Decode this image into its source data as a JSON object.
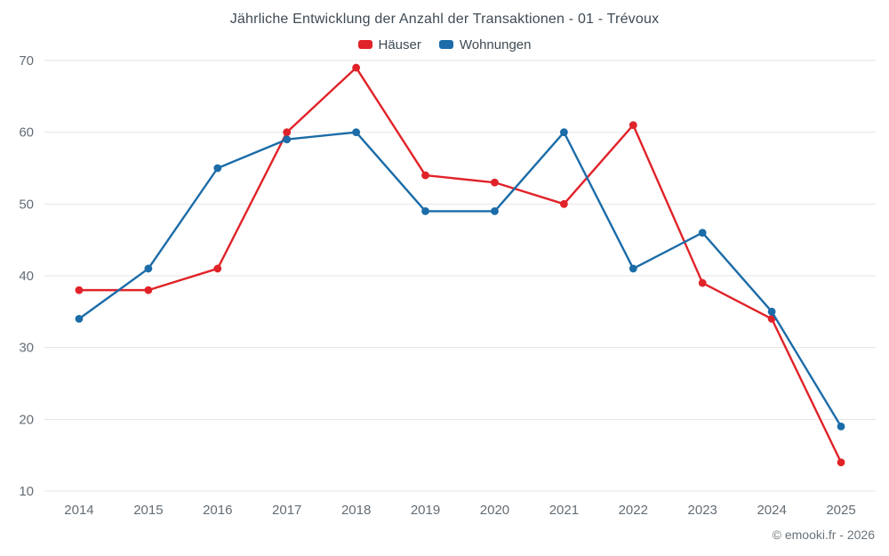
{
  "title": "Jährliche Entwicklung der Anzahl der Transaktionen - 01 - Trévoux",
  "footer": "© emooki.fr - 2026",
  "chart_data": {
    "type": "line",
    "title": "Jährliche Entwicklung der Anzahl der Transaktionen - 01 - Trévoux",
    "categories": [
      "2014",
      "2015",
      "2016",
      "2017",
      "2018",
      "2019",
      "2020",
      "2021",
      "2022",
      "2023",
      "2024",
      "2025"
    ],
    "series": [
      {
        "name": "Häuser",
        "color": "#e02329",
        "values": [
          38,
          38,
          41,
          60,
          69,
          54,
          53,
          50,
          61,
          39,
          34,
          14
        ]
      },
      {
        "name": "Wohnungen",
        "color": "#1b6ca8",
        "values": [
          34,
          41,
          55,
          59,
          60,
          49,
          49,
          60,
          41,
          46,
          35,
          19
        ]
      }
    ],
    "ylim": [
      10,
      70
    ],
    "yticks": [
      10,
      20,
      30,
      40,
      50,
      60,
      70
    ],
    "xlabel": "",
    "ylabel": "",
    "grid": true,
    "grid_color": "#e6e6e6",
    "legend_position": "top"
  }
}
